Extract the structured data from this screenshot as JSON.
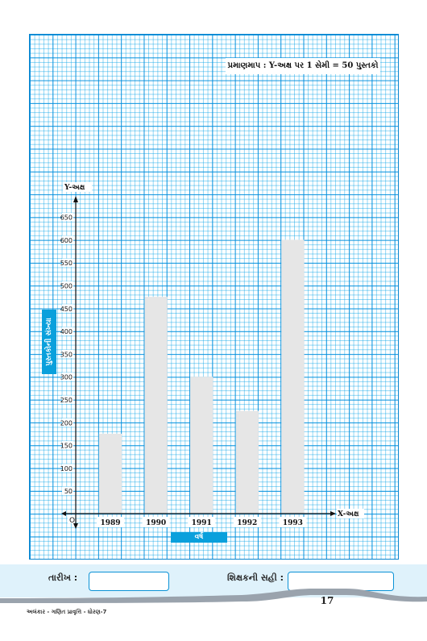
{
  "chart_data": {
    "type": "bar",
    "title": "",
    "scale_note": "પ્રમાણમાપ : Y-અક્ષ પર 1 સેમી = 50 પુસ્તકો",
    "xlabel": "વર્ષ",
    "ylabel": "પુસ્તકોની સંખ્યા",
    "x_axis_name": "X-અક્ષ",
    "y_axis_name": "Y-અક્ષ",
    "origin_label": "O",
    "categories": [
      "1989",
      "1990",
      "1991",
      "1992",
      "1993"
    ],
    "values": [
      175,
      475,
      300,
      225,
      600
    ],
    "y_ticks": [
      50,
      100,
      150,
      200,
      250,
      300,
      350,
      400,
      450,
      500,
      550,
      600,
      650
    ],
    "ylim": [
      0,
      650
    ],
    "grid": true,
    "colors": {
      "bar": "#e6e6e6",
      "grid": "#0a8fd6",
      "axis": "#111111",
      "label_box": "#0aa0dc"
    }
  },
  "footer": {
    "date_label": "તારીખ :",
    "sign_label": "શિક્ષકની સહી :",
    "page_number": "17",
    "book_title": "અલંકાર - ગણિત પ્રાવૃત્તિ - ધોરણ-7"
  }
}
